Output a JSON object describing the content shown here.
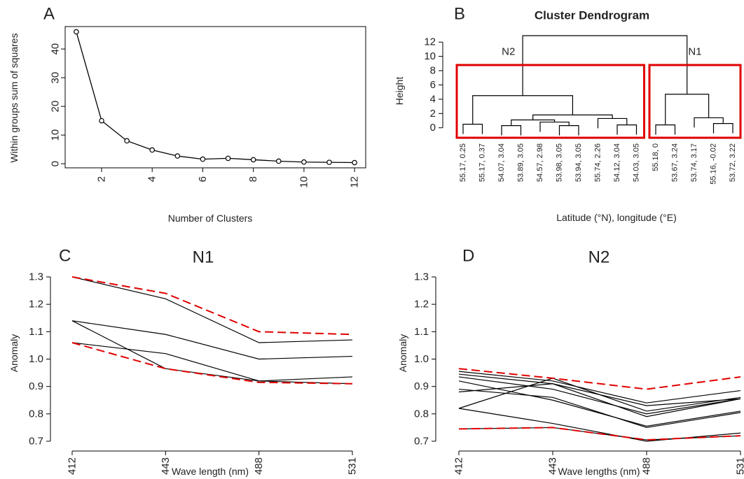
{
  "chart_data": [
    {
      "type": "line",
      "panel_label": "A",
      "x": [
        1,
        2,
        3,
        4,
        5,
        6,
        7,
        8,
        9,
        10,
        11,
        12
      ],
      "values": [
        46,
        15,
        8,
        4.8,
        2.7,
        1.6,
        1.9,
        1.4,
        0.9,
        0.6,
        0.5,
        0.4
      ],
      "color": "#000000",
      "markers": true,
      "xlim": [
        0.56,
        12.44
      ],
      "ylim": [
        -1.42,
        47.82
      ],
      "xticks": [
        2,
        4,
        6,
        8,
        10,
        12
      ],
      "yticks": [
        0,
        10,
        20,
        30,
        40
      ],
      "x_label": "Number of Clusters",
      "y_label": "Within groups sum of squares"
    },
    {
      "type": "dendrogram",
      "panel_label": "B",
      "title": "Cluster Dendrogram",
      "y_label": "Height",
      "x_label": "Latitude (°N), longitude (°E)",
      "leaves": [
        "55.17, 0.25",
        "55.17, 0.37",
        "54.07, 3.04",
        "53.89, 3.05",
        "54.57, 2.98",
        "53.98, 3.05",
        "53.94, 3.05",
        "55.74, 2.26",
        "54.12, 3.04",
        "54.03, 3.05",
        "55.18, 0",
        "53.67, 3.24",
        "53.74, 3.17",
        "55.16, -0.02",
        "53.72, 3.22"
      ],
      "merges": [
        [
          -1,
          -2,
          0.5
        ],
        [
          -3,
          -4,
          0.3
        ],
        [
          -6,
          -7,
          0.3
        ],
        [
          -5,
          3,
          0.8
        ],
        [
          2,
          4,
          1.1
        ],
        [
          -9,
          -10,
          0.4
        ],
        [
          -8,
          6,
          1.3
        ],
        [
          5,
          7,
          1.8
        ],
        [
          1,
          8,
          4.5
        ],
        [
          -11,
          -12,
          0.4
        ],
        [
          -14,
          -15,
          0.6
        ],
        [
          -13,
          11,
          1.4
        ],
        [
          10,
          12,
          4.7
        ],
        [
          9,
          13,
          12.9
        ]
      ],
      "ylim": [
        -1.3,
        12.9
      ],
      "yticks": [
        0,
        2,
        4,
        6,
        8,
        10,
        12
      ],
      "color": "#000000",
      "clusters": [
        {
          "name": "N2",
          "first": 1,
          "last": 10
        },
        {
          "name": "N1",
          "first": 11,
          "last": 15
        }
      ],
      "cluster_color": "#e00000"
    },
    {
      "type": "line",
      "panel_label": "C",
      "title": "N1",
      "categories": [
        "412",
        "443",
        "488",
        "531"
      ],
      "x_label": "Wave length (nm)",
      "y_label": "Anomaly",
      "ylim": [
        0.7,
        1.3
      ],
      "yticks": [
        0.7,
        0.8,
        0.9,
        {
          "value": 1.0,
          "label": "1.0"
        },
        1.1,
        1.2,
        1.3
      ],
      "series": [
        {
          "color": "#000000",
          "values": [
            1.3,
            1.22,
            1.06,
            1.07
          ]
        },
        {
          "color": "#000000",
          "values": [
            1.14,
            1.09,
            1.0,
            1.01
          ]
        },
        {
          "color": "#000000",
          "values": [
            1.14,
            0.965,
            0.92,
            0.91
          ]
        },
        {
          "color": "#000000",
          "values": [
            1.06,
            1.02,
            0.92,
            0.935
          ]
        },
        {
          "color": "#e00000",
          "dashed": true,
          "values": [
            1.3,
            1.24,
            1.1,
            1.09
          ]
        },
        {
          "color": "#e00000",
          "dashed": true,
          "values": [
            1.06,
            0.965,
            0.915,
            0.91
          ]
        }
      ]
    },
    {
      "type": "line",
      "panel_label": "D",
      "title": "N2",
      "categories": [
        "412",
        "443",
        "488",
        "531"
      ],
      "x_label": "Wave lengths (nm)",
      "y_label": "Anomaly",
      "ylim": [
        0.7,
        1.3
      ],
      "yticks": [
        0.7,
        0.8,
        0.9,
        {
          "value": 1.0,
          "label": "1.0"
        },
        1.1,
        1.2,
        1.3
      ],
      "series": [
        {
          "color": "#000000",
          "values": [
            0.955,
            0.92,
            0.84,
            0.885
          ]
        },
        {
          "color": "#000000",
          "values": [
            0.945,
            0.91,
            0.83,
            0.855
          ]
        },
        {
          "color": "#000000",
          "values": [
            0.935,
            0.89,
            0.8,
            0.855
          ]
        },
        {
          "color": "#000000",
          "values": [
            0.92,
            0.85,
            0.755,
            0.81
          ]
        },
        {
          "color": "#000000",
          "values": [
            0.89,
            0.86,
            0.75,
            0.805
          ]
        },
        {
          "color": "#000000",
          "values": [
            0.88,
            0.91,
            0.79,
            0.855
          ]
        },
        {
          "color": "#000000",
          "values": [
            0.82,
            0.93,
            0.81,
            0.86
          ]
        },
        {
          "color": "#000000",
          "values": [
            0.82,
            0.765,
            0.7,
            0.73
          ]
        },
        {
          "color": "#000000",
          "values": [
            0.745,
            0.75,
            0.705,
            0.72
          ]
        },
        {
          "color": "#e00000",
          "dashed": true,
          "values": [
            0.965,
            0.93,
            0.89,
            0.935
          ]
        },
        {
          "color": "#e00000",
          "dashed": true,
          "values": [
            0.745,
            0.75,
            0.705,
            0.72
          ]
        }
      ]
    }
  ]
}
